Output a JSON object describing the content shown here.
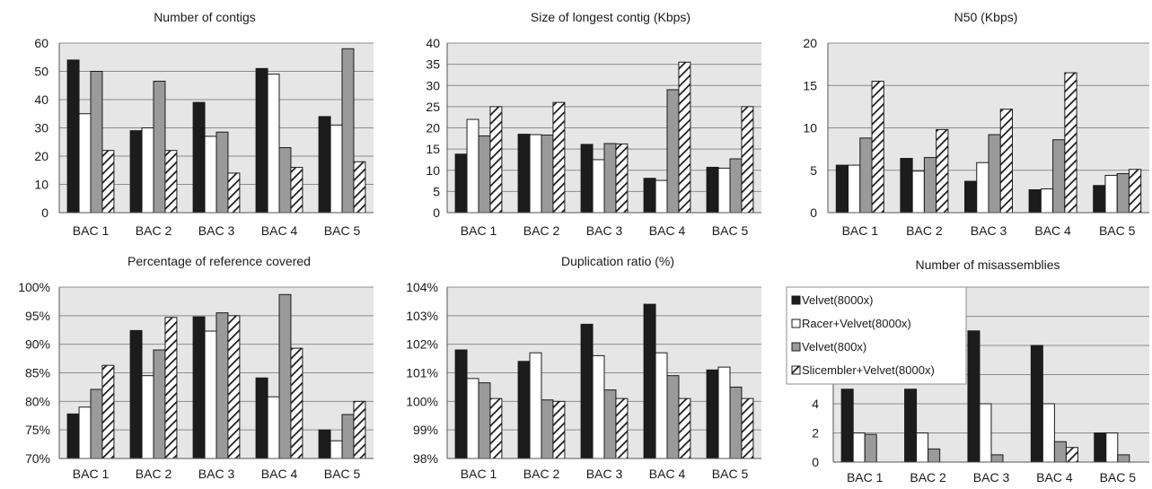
{
  "series_styles": [
    {
      "fill": "#1c1c1c",
      "pattern": "none"
    },
    {
      "fill": "#ffffff",
      "pattern": "none"
    },
    {
      "fill": "#9a9a9a",
      "pattern": "none"
    },
    {
      "fill": "#ffffff",
      "pattern": "hatch"
    }
  ],
  "colors": {
    "plot_bg": "#e6e6e6",
    "gridline": "#8c8c8c",
    "bar_stroke": "#1a1a1a"
  },
  "chart_data": [
    {
      "type": "bar",
      "title": "Number of contigs",
      "categories": [
        "BAC 1",
        "BAC 2",
        "BAC 3",
        "BAC 4",
        "BAC 5"
      ],
      "ylim": [
        0,
        60
      ],
      "yticks": [
        0,
        10,
        20,
        30,
        40,
        50,
        60
      ],
      "tick_labels": [
        "0",
        "10",
        "20",
        "30",
        "40",
        "50",
        "60"
      ],
      "grid": true,
      "legend": "none",
      "series": [
        {
          "values": [
            54,
            29,
            39,
            51,
            34
          ]
        },
        {
          "values": [
            35,
            30,
            27,
            49,
            31
          ]
        },
        {
          "values": [
            50,
            46.5,
            28.5,
            23,
            58
          ]
        },
        {
          "values": [
            22,
            22,
            14,
            16,
            18
          ]
        }
      ]
    },
    {
      "type": "bar",
      "title": "Size of longest contig (Kbps)",
      "categories": [
        "BAC 1",
        "BAC 2",
        "BAC 3",
        "BAC 4",
        "BAC 5"
      ],
      "ylim": [
        0,
        40
      ],
      "yticks": [
        0,
        5,
        10,
        15,
        20,
        25,
        30,
        35,
        40
      ],
      "tick_labels": [
        "0",
        "5",
        "10",
        "15",
        "20",
        "25",
        "30",
        "35",
        "40"
      ],
      "grid": true,
      "legend": "none",
      "series": [
        {
          "values": [
            13.8,
            18.5,
            16.1,
            8.1,
            10.7
          ]
        },
        {
          "values": [
            22,
            18.4,
            12.5,
            7.6,
            10.5
          ]
        },
        {
          "values": [
            18.1,
            18.3,
            16.3,
            29,
            12.7
          ]
        },
        {
          "values": [
            25,
            26,
            16.2,
            35.5,
            25
          ]
        }
      ]
    },
    {
      "type": "bar",
      "title": "N50 (Kbps)",
      "categories": [
        "BAC 1",
        "BAC 2",
        "BAC 3",
        "BAC 4",
        "BAC 5"
      ],
      "ylim": [
        0,
        20
      ],
      "yticks": [
        0,
        5,
        10,
        15,
        20
      ],
      "tick_labels": [
        "0",
        "5",
        "10",
        "15",
        "20"
      ],
      "grid": true,
      "legend": "none",
      "series": [
        {
          "values": [
            5.6,
            6.4,
            3.7,
            2.7,
            3.2
          ]
        },
        {
          "values": [
            5.6,
            4.9,
            5.9,
            2.8,
            4.4
          ]
        },
        {
          "values": [
            8.8,
            6.5,
            9.2,
            8.6,
            4.6
          ]
        },
        {
          "values": [
            15.5,
            9.8,
            12.2,
            16.5,
            5.1
          ]
        }
      ]
    },
    {
      "type": "bar",
      "title": "Percentage of reference covered",
      "categories": [
        "BAC 1",
        "BAC 2",
        "BAC 3",
        "BAC 4",
        "BAC 5"
      ],
      "ylim": [
        70,
        100
      ],
      "yticks": [
        70,
        75,
        80,
        85,
        90,
        95,
        100
      ],
      "tick_labels": [
        "70%",
        "75%",
        "80%",
        "85%",
        "90%",
        "95%",
        "100%"
      ],
      "grid": true,
      "legend": "none",
      "series": [
        {
          "values": [
            77.8,
            92.4,
            94.8,
            84.1,
            75
          ]
        },
        {
          "values": [
            79,
            84.5,
            92.3,
            80.8,
            73.1
          ]
        },
        {
          "values": [
            82.1,
            89,
            95.5,
            98.7,
            77.7
          ]
        },
        {
          "values": [
            86.3,
            94.7,
            95,
            89.3,
            80
          ]
        }
      ]
    },
    {
      "type": "bar",
      "title": "Duplication ratio (%)",
      "categories": [
        "BAC 1",
        "BAC 2",
        "BAC 3",
        "BAC 4",
        "BAC 5"
      ],
      "ylim": [
        98,
        104
      ],
      "yticks": [
        98,
        99,
        100,
        101,
        102,
        103,
        104
      ],
      "tick_labels": [
        "98%",
        "99%",
        "100%",
        "101%",
        "102%",
        "103%",
        "104%"
      ],
      "grid": true,
      "legend": "none",
      "series": [
        {
          "values": [
            101.8,
            101.4,
            102.7,
            103.4,
            101.1
          ]
        },
        {
          "values": [
            100.8,
            101.7,
            101.6,
            101.7,
            101.2
          ]
        },
        {
          "values": [
            100.65,
            100.05,
            100.4,
            100.9,
            100.5
          ]
        },
        {
          "values": [
            100.1,
            100,
            100.1,
            100.1,
            100.1
          ]
        }
      ]
    },
    {
      "type": "bar",
      "title": "Number of misassemblies",
      "categories": [
        "BAC 1",
        "BAC 2",
        "BAC 3",
        "BAC 4",
        "BAC 5"
      ],
      "ylim": [
        0,
        12
      ],
      "yticks": [
        0,
        2,
        4,
        6,
        8,
        10,
        12
      ],
      "tick_labels": [
        "0",
        "2",
        "4",
        "",
        "",
        "",
        ""
      ],
      "grid": true,
      "legend": "top-left",
      "legend_labels": [
        "Velvet(8000x)",
        "Racer+Velvet(8000x)",
        "Velvet(800x)",
        "Slicembler+Velvet(8000x)"
      ],
      "series": [
        {
          "values": [
            5,
            5,
            9,
            8,
            2
          ]
        },
        {
          "values": [
            2,
            2,
            4,
            4,
            2
          ]
        },
        {
          "values": [
            1.9,
            0.9,
            0.5,
            1.4,
            0.5
          ]
        },
        {
          "values": [
            0,
            0,
            0,
            1,
            0
          ]
        }
      ]
    }
  ]
}
